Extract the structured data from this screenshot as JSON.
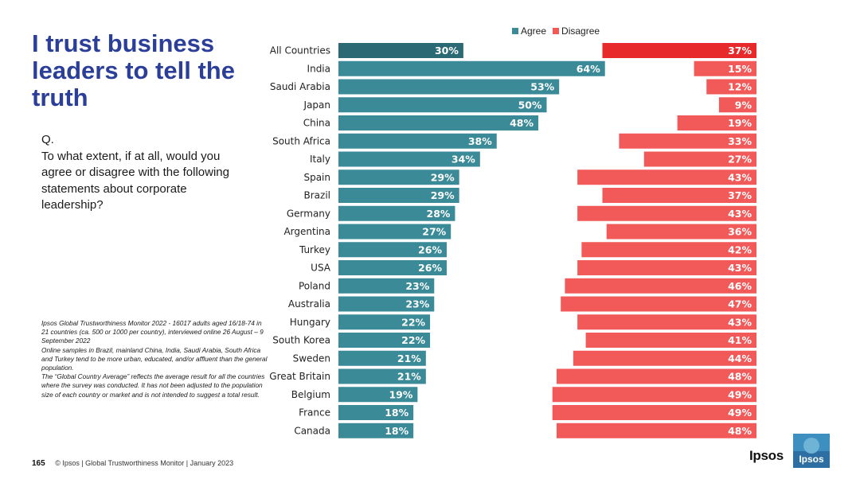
{
  "title": "I trust business leaders to tell the truth",
  "question": {
    "label": "Q.",
    "text": "To what extent, if at all, would you agree or disagree with the following statements about corporate leadership?"
  },
  "notes": [
    "Ipsos Global Trustworthiness Monitor 2022 - 16017 adults aged 16/18-74 in 21 countries (ca. 500 or 1000 per country), interviewed online 26 August – 9 September 2022",
    "Online samples in Brazil, mainland China, India, Saudi Arabia, South Africa and Turkey tend to be more urban, educated, and/or affluent than the general population.",
    "The “Global Country Average” reflects the average result for all the countries where the survey was conducted. It has not been adjusted to the population size of each country or market and is not intended to suggest a total result."
  ],
  "footer": {
    "page_number": "165",
    "text": "© Ipsos | Global Trustworthiness Monitor | January 2023"
  },
  "brand": {
    "name": "Ipsos",
    "logo_text": "Ipsos"
  },
  "colors": {
    "agree": "#3a8a98",
    "agree_highlight": "#2b6a75",
    "disagree": "#f25a5a",
    "disagree_highlight": "#e8292b",
    "title": "#2b3f99"
  },
  "chart_data": {
    "type": "bar",
    "orientation": "horizontal-diverging",
    "categories": [
      "All Countries",
      "India",
      "Saudi Arabia",
      "Japan",
      "China",
      "South Africa",
      "Italy",
      "Spain",
      "Brazil",
      "Germany",
      "Argentina",
      "Turkey",
      "USA",
      "Poland",
      "Australia",
      "Hungary",
      "South Korea",
      "Sweden",
      "Great Britain",
      "Belgium",
      "France",
      "Canada"
    ],
    "series": [
      {
        "name": "Agree",
        "values": [
          30,
          64,
          53,
          50,
          48,
          38,
          34,
          29,
          29,
          28,
          27,
          26,
          26,
          23,
          23,
          22,
          22,
          21,
          21,
          19,
          18,
          18
        ]
      },
      {
        "name": "Disagree",
        "values": [
          37,
          15,
          12,
          9,
          19,
          33,
          27,
          43,
          37,
          43,
          36,
          42,
          43,
          46,
          47,
          43,
          41,
          44,
          48,
          49,
          49,
          48
        ]
      }
    ],
    "value_suffix": "%",
    "legend": [
      "Agree",
      "Disagree"
    ],
    "legend_position": "top",
    "highlight_category": "All Countries",
    "xlim": [
      0,
      100
    ]
  }
}
